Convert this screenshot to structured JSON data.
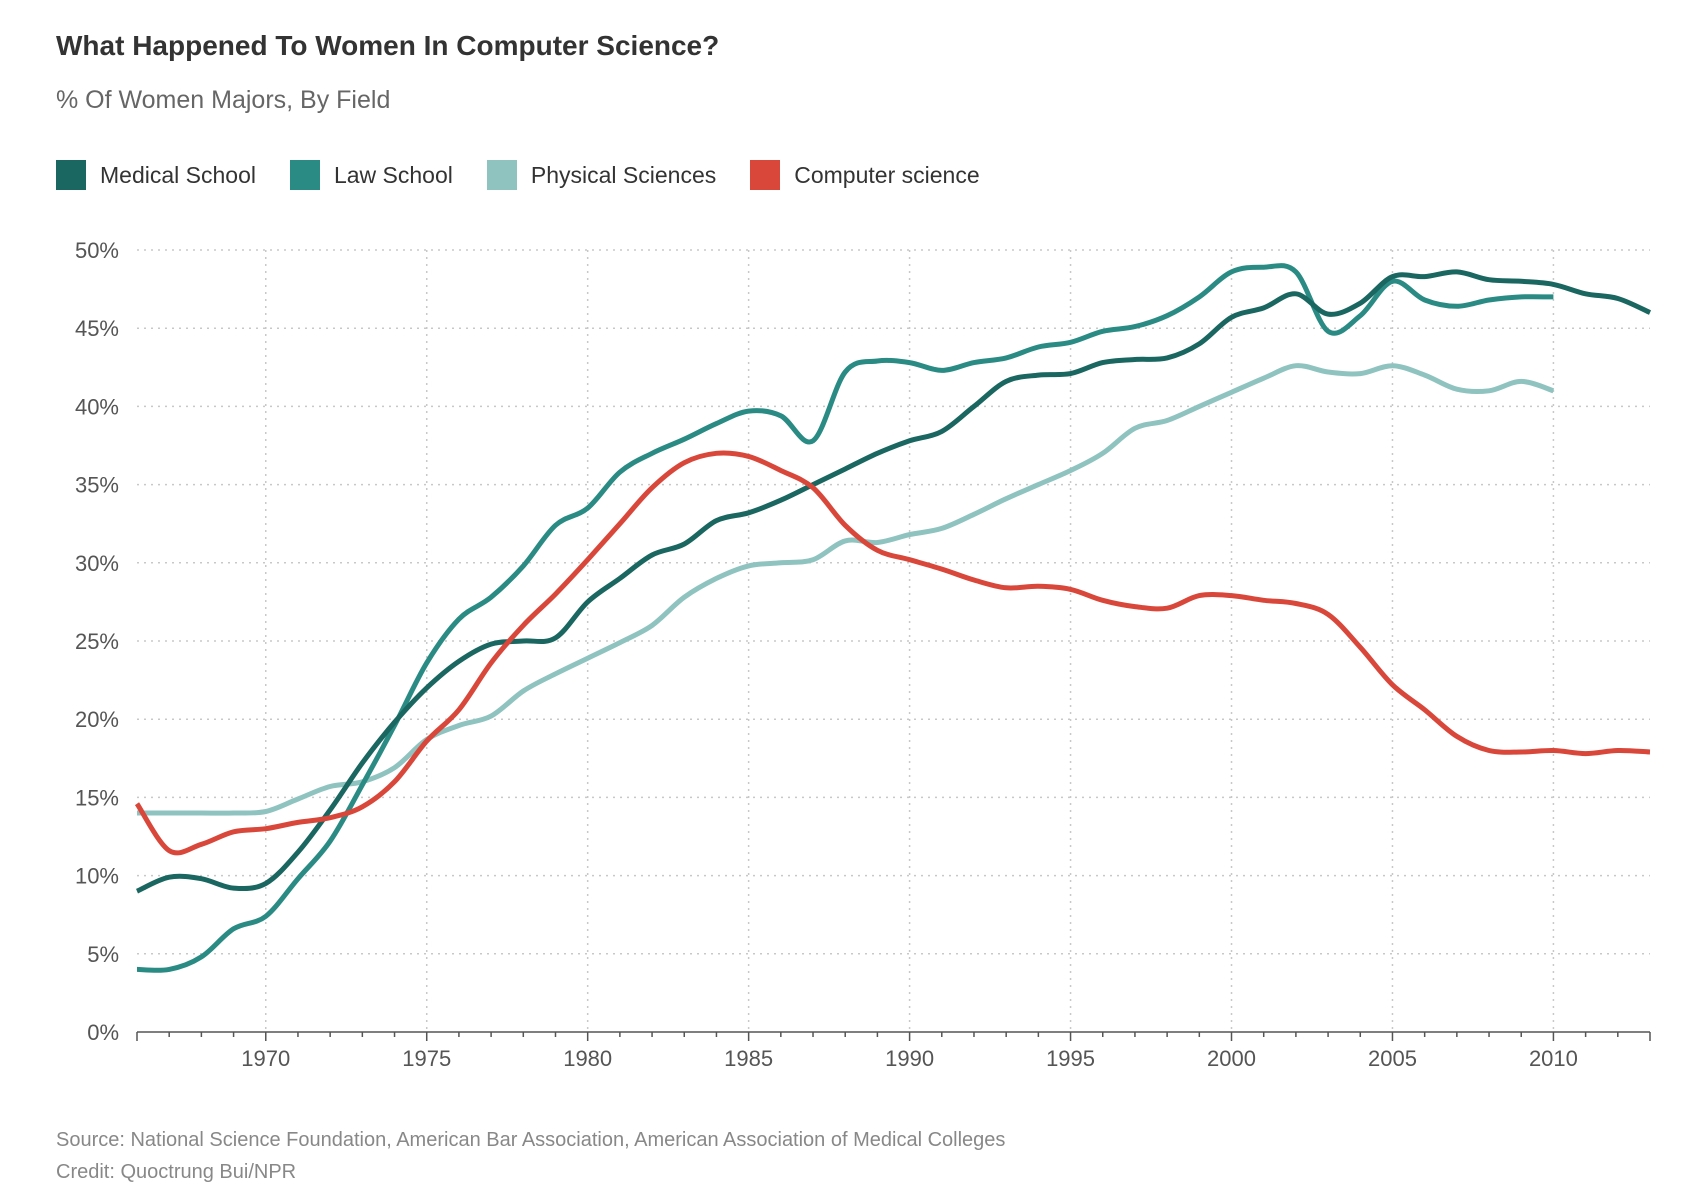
{
  "chart_data": {
    "type": "line",
    "title": "What Happened To Women In Computer Science?",
    "subtitle": "% Of Women Majors, By Field",
    "xlabel": "",
    "ylabel": "",
    "xlim": [
      1966,
      2013
    ],
    "ylim": [
      0,
      50
    ],
    "y_ticks": [
      0,
      5,
      10,
      15,
      20,
      25,
      30,
      35,
      40,
      45,
      50
    ],
    "y_tick_suffix": "%",
    "x_ticks": [
      1970,
      1975,
      1980,
      1985,
      1990,
      1995,
      2000,
      2005,
      2010
    ],
    "grid": true,
    "legend_position": "top-left",
    "series": [
      {
        "name": "Medical School",
        "color": "#1a6660",
        "points": [
          [
            1966,
            9
          ],
          [
            1967,
            9.9
          ],
          [
            1968,
            9.8
          ],
          [
            1969,
            9.2
          ],
          [
            1970,
            9.5
          ],
          [
            1971,
            11.5
          ],
          [
            1972,
            14.2
          ],
          [
            1973,
            17.2
          ],
          [
            1974,
            19.8
          ],
          [
            1975,
            22
          ],
          [
            1976,
            23.7
          ],
          [
            1977,
            24.8
          ],
          [
            1978,
            25
          ],
          [
            1979,
            25.2
          ],
          [
            1980,
            27.5
          ],
          [
            1981,
            29
          ],
          [
            1982,
            30.5
          ],
          [
            1983,
            31.2
          ],
          [
            1984,
            32.7
          ],
          [
            1985,
            33.2
          ],
          [
            1986,
            34
          ],
          [
            1987,
            35
          ],
          [
            1988,
            36
          ],
          [
            1989,
            37
          ],
          [
            1990,
            37.8
          ],
          [
            1991,
            38.4
          ],
          [
            1992,
            40
          ],
          [
            1993,
            41.6
          ],
          [
            1994,
            42
          ],
          [
            1995,
            42.1
          ],
          [
            1996,
            42.8
          ],
          [
            1997,
            43
          ],
          [
            1998,
            43.1
          ],
          [
            1999,
            44
          ],
          [
            2000,
            45.7
          ],
          [
            2001,
            46.3
          ],
          [
            2002,
            47.2
          ],
          [
            2003,
            45.9
          ],
          [
            2004,
            46.6
          ],
          [
            2005,
            48.3
          ],
          [
            2006,
            48.3
          ],
          [
            2007,
            48.6
          ],
          [
            2008,
            48.1
          ],
          [
            2009,
            48
          ],
          [
            2010,
            47.8
          ],
          [
            2011,
            47.2
          ],
          [
            2012,
            46.9
          ],
          [
            2013,
            46
          ]
        ]
      },
      {
        "name": "Law School",
        "color": "#2a8b84",
        "points": [
          [
            1966,
            4
          ],
          [
            1967,
            4
          ],
          [
            1968,
            4.8
          ],
          [
            1969,
            6.6
          ],
          [
            1970,
            7.4
          ],
          [
            1971,
            9.8
          ],
          [
            1972,
            12.2
          ],
          [
            1973,
            15.8
          ],
          [
            1974,
            19.6
          ],
          [
            1975,
            23.6
          ],
          [
            1976,
            26.4
          ],
          [
            1977,
            27.8
          ],
          [
            1978,
            29.8
          ],
          [
            1979,
            32.4
          ],
          [
            1980,
            33.5
          ],
          [
            1981,
            35.8
          ],
          [
            1982,
            37
          ],
          [
            1983,
            37.9
          ],
          [
            1984,
            38.9
          ],
          [
            1985,
            39.7
          ],
          [
            1986,
            39.4
          ],
          [
            1987,
            37.8
          ],
          [
            1988,
            42.2
          ],
          [
            1989,
            42.9
          ],
          [
            1990,
            42.8
          ],
          [
            1991,
            42.3
          ],
          [
            1992,
            42.8
          ],
          [
            1993,
            43.1
          ],
          [
            1994,
            43.8
          ],
          [
            1995,
            44.1
          ],
          [
            1996,
            44.8
          ],
          [
            1997,
            45.1
          ],
          [
            1998,
            45.8
          ],
          [
            1999,
            47
          ],
          [
            2000,
            48.6
          ],
          [
            2001,
            48.9
          ],
          [
            2002,
            48.6
          ],
          [
            2003,
            44.8
          ],
          [
            2004,
            45.8
          ],
          [
            2005,
            48
          ],
          [
            2006,
            46.8
          ],
          [
            2007,
            46.4
          ],
          [
            2008,
            46.8
          ],
          [
            2009,
            47
          ],
          [
            2010,
            47
          ]
        ]
      },
      {
        "name": "Physical Sciences",
        "color": "#8ec3c0",
        "points": [
          [
            1966,
            14
          ],
          [
            1967,
            14
          ],
          [
            1968,
            14
          ],
          [
            1969,
            14
          ],
          [
            1970,
            14.1
          ],
          [
            1971,
            14.9
          ],
          [
            1972,
            15.7
          ],
          [
            1973,
            16
          ],
          [
            1974,
            16.9
          ],
          [
            1975,
            18.7
          ],
          [
            1976,
            19.6
          ],
          [
            1977,
            20.2
          ],
          [
            1978,
            21.8
          ],
          [
            1979,
            22.9
          ],
          [
            1980,
            23.9
          ],
          [
            1981,
            24.9
          ],
          [
            1982,
            26
          ],
          [
            1983,
            27.8
          ],
          [
            1984,
            29
          ],
          [
            1985,
            29.8
          ],
          [
            1986,
            30
          ],
          [
            1987,
            30.2
          ],
          [
            1988,
            31.4
          ],
          [
            1989,
            31.3
          ],
          [
            1990,
            31.8
          ],
          [
            1991,
            32.2
          ],
          [
            1992,
            33.1
          ],
          [
            1993,
            34.1
          ],
          [
            1994,
            35
          ],
          [
            1995,
            35.9
          ],
          [
            1996,
            37
          ],
          [
            1997,
            38.6
          ],
          [
            1998,
            39.1
          ],
          [
            1999,
            40
          ],
          [
            2000,
            40.9
          ],
          [
            2001,
            41.8
          ],
          [
            2002,
            42.6
          ],
          [
            2003,
            42.2
          ],
          [
            2004,
            42.1
          ],
          [
            2005,
            42.6
          ],
          [
            2006,
            42
          ],
          [
            2007,
            41.1
          ],
          [
            2008,
            41
          ],
          [
            2009,
            41.6
          ],
          [
            2010,
            41
          ]
        ]
      },
      {
        "name": "Computer science",
        "color": "#d9473a",
        "points": [
          [
            1966,
            14.6
          ],
          [
            1967,
            11.6
          ],
          [
            1968,
            12
          ],
          [
            1969,
            12.8
          ],
          [
            1970,
            13
          ],
          [
            1971,
            13.4
          ],
          [
            1972,
            13.7
          ],
          [
            1973,
            14.4
          ],
          [
            1974,
            16
          ],
          [
            1975,
            18.6
          ],
          [
            1976,
            20.6
          ],
          [
            1977,
            23.6
          ],
          [
            1978,
            26
          ],
          [
            1979,
            28
          ],
          [
            1980,
            30.2
          ],
          [
            1981,
            32.5
          ],
          [
            1982,
            34.8
          ],
          [
            1983,
            36.4
          ],
          [
            1984,
            37
          ],
          [
            1985,
            36.8
          ],
          [
            1986,
            35.9
          ],
          [
            1987,
            34.8
          ],
          [
            1988,
            32.4
          ],
          [
            1989,
            30.8
          ],
          [
            1990,
            30.2
          ],
          [
            1991,
            29.6
          ],
          [
            1992,
            28.9
          ],
          [
            1993,
            28.4
          ],
          [
            1994,
            28.5
          ],
          [
            1995,
            28.3
          ],
          [
            1996,
            27.6
          ],
          [
            1997,
            27.2
          ],
          [
            1998,
            27.1
          ],
          [
            1999,
            27.9
          ],
          [
            2000,
            27.9
          ],
          [
            2001,
            27.6
          ],
          [
            2002,
            27.4
          ],
          [
            2003,
            26.7
          ],
          [
            2004,
            24.6
          ],
          [
            2005,
            22.2
          ],
          [
            2006,
            20.6
          ],
          [
            2007,
            18.9
          ],
          [
            2008,
            18
          ],
          [
            2009,
            17.9
          ],
          [
            2010,
            18
          ],
          [
            2011,
            17.8
          ],
          [
            2012,
            18
          ],
          [
            2013,
            17.9
          ]
        ]
      }
    ]
  },
  "footer": {
    "source": "Source: National Science Foundation, American Bar Association, American Association of Medical Colleges",
    "credit": "Credit: Quoctrung Bui/NPR"
  }
}
